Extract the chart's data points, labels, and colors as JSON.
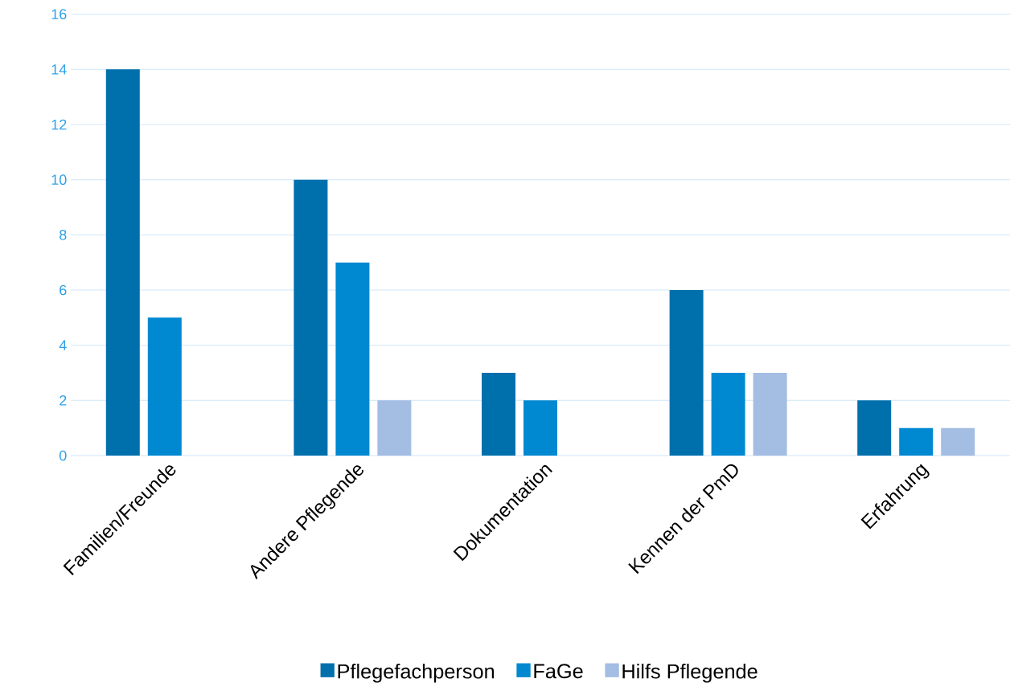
{
  "chart_data": {
    "type": "bar",
    "categories": [
      "Familien/Freunde",
      "Andere Pflegende",
      "Dokumentation",
      "Kennen der PmD",
      "Erfahrung"
    ],
    "series": [
      {
        "name": "Pflegefachperson",
        "color": "#0070ad",
        "values": [
          14,
          10,
          3,
          6,
          2
        ]
      },
      {
        "name": "FaGe",
        "color": "#0088d1",
        "values": [
          5,
          7,
          2,
          3,
          1
        ]
      },
      {
        "name": "Hilfs Pflegende",
        "color": "#a3bde3",
        "values": [
          null,
          2,
          null,
          3,
          1
        ]
      }
    ],
    "ylim": [
      0,
      16
    ],
    "yticks": [
      0,
      2,
      4,
      6,
      8,
      10,
      12,
      14,
      16
    ],
    "grid": "y",
    "legend": "bottom"
  }
}
